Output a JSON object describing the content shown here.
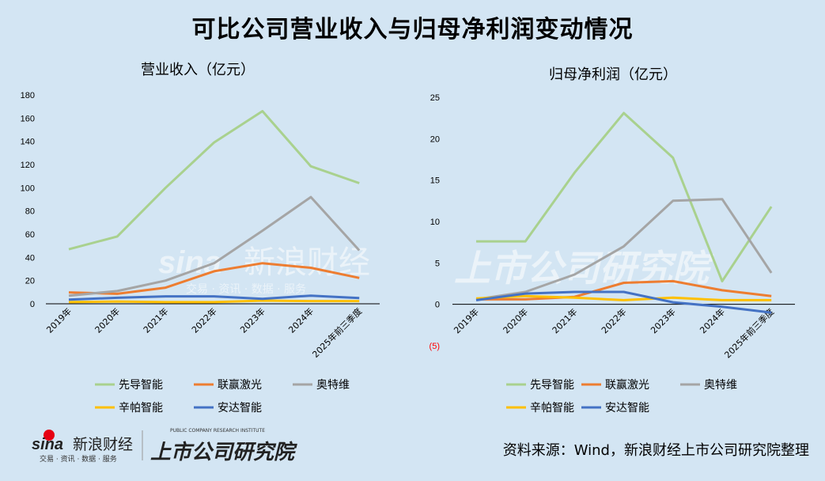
{
  "title": "可比公司营业收入与归母净利润变动情况",
  "source": "资料来源：Wind，新浪财经上市公司研究院整理",
  "logo": {
    "brand": "sina 新浪财经",
    "tagline": "交易 · 资讯 · 数据 · 服务",
    "institute": "上市公司研究院",
    "institute_en": "PUBLIC COMPANY RESEARCH INSTITUTE"
  },
  "watermark": {
    "left": "sina 新浪财经 交易 · 资讯 · 数据 · 服务",
    "right": "上市公司研究院"
  },
  "chart_data": [
    {
      "type": "line",
      "title": "营业收入（亿元）",
      "categories": [
        "2019年",
        "2020年",
        "2021年",
        "2022年",
        "2023年",
        "2024年",
        "2025年前三季度"
      ],
      "ylim": [
        0,
        180
      ],
      "yticks": [
        {
          "v": 0,
          "label": "0"
        },
        {
          "v": 20,
          "label": "20"
        },
        {
          "v": 40,
          "label": "40"
        },
        {
          "v": 60,
          "label": "60"
        },
        {
          "v": 80,
          "label": "80"
        },
        {
          "v": 100,
          "label": "100"
        },
        {
          "v": 120,
          "label": "120"
        },
        {
          "v": 140,
          "label": "140"
        },
        {
          "v": 160,
          "label": "160"
        },
        {
          "v": 180,
          "label": "180"
        }
      ],
      "grid": false,
      "legend": "bottom",
      "series": [
        {
          "name": "先导智能",
          "color": "#a9d18e",
          "values": [
            47,
            58,
            100,
            139,
            166,
            118.5,
            104
          ]
        },
        {
          "name": "联赢激光",
          "color": "#ed7d31",
          "values": [
            9.8,
            8.6,
            13.9,
            28,
            35,
            31,
            22.3
          ]
        },
        {
          "name": "奥特维",
          "color": "#a5a5a5",
          "values": [
            7,
            11,
            20,
            35,
            63,
            92,
            46
          ]
        },
        {
          "name": "辛帕智能",
          "color": "#ffc000",
          "values": [
            1.4,
            2,
            1.4,
            1.4,
            2.7,
            2.3,
            2.3
          ]
        },
        {
          "name": "安达智能",
          "color": "#4472c4",
          "values": [
            3.6,
            5.2,
            6.4,
            6.4,
            4.3,
            7,
            5
          ]
        }
      ]
    },
    {
      "type": "line",
      "title": "归母净利润（亿元）",
      "categories": [
        "2019年",
        "2020年",
        "2021年",
        "2022年",
        "2023年",
        "2024年",
        "2025年前三季度"
      ],
      "ylim": [
        -5,
        25
      ],
      "yticks": [
        {
          "v": -5,
          "label": "(5)",
          "color": "#ff0000"
        },
        {
          "v": 0,
          "label": "0"
        },
        {
          "v": 5,
          "label": "5"
        },
        {
          "v": 10,
          "label": "10"
        },
        {
          "v": 15,
          "label": "15"
        },
        {
          "v": 20,
          "label": "20"
        },
        {
          "v": 25,
          "label": "25"
        }
      ],
      "grid": false,
      "legend": "bottom",
      "series": [
        {
          "name": "先导智能",
          "color": "#a9d18e",
          "values": [
            7.6,
            7.6,
            15.9,
            23.1,
            17.7,
            2.8,
            11.8
          ]
        },
        {
          "name": "联赢激光",
          "color": "#ed7d31",
          "values": [
            0.6,
            0.6,
            0.9,
            2.6,
            2.8,
            1.7,
            1.0
          ]
        },
        {
          "name": "奥特维",
          "color": "#a5a5a5",
          "values": [
            0.6,
            1.5,
            3.6,
            7,
            12.5,
            12.7,
            3.8
          ]
        },
        {
          "name": "辛帕智能",
          "color": "#ffc000",
          "values": [
            0.7,
            1.0,
            0.8,
            0.5,
            0.8,
            0.5,
            0.5
          ]
        },
        {
          "name": "安达智能",
          "color": "#4472c4",
          "values": [
            0.5,
            1.3,
            1.5,
            1.5,
            0.25,
            -0.3,
            -1.0
          ]
        }
      ]
    }
  ]
}
